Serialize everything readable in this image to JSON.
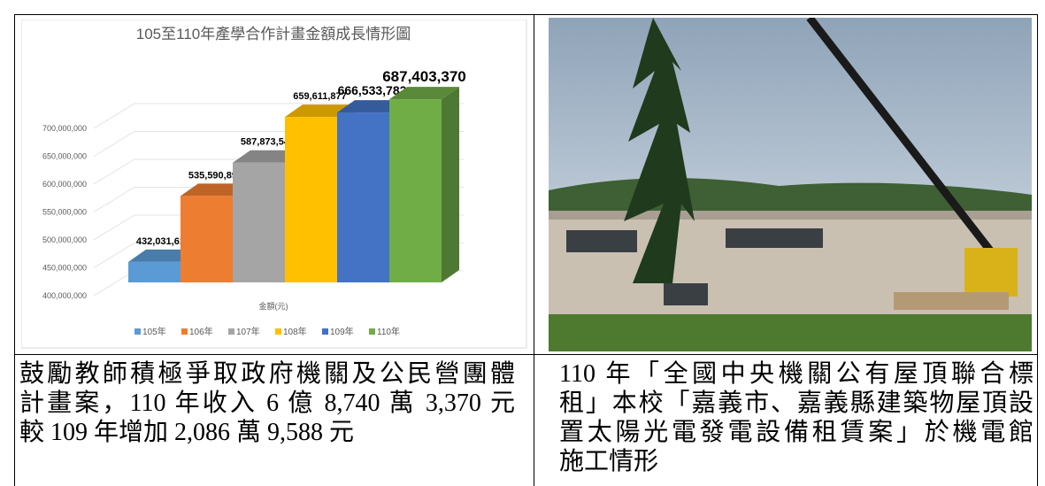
{
  "chart_data": {
    "type": "bar3d",
    "title": "105至110年產學合作計畫金額成長情形圖",
    "x_label": "金額(元)",
    "series": [
      {
        "name": "105年",
        "color": "#5b9bd5",
        "values": [
          432031615
        ],
        "value_labels": [
          "432,031,615"
        ]
      },
      {
        "name": "106年",
        "color": "#ed7d31",
        "values": [
          535590898
        ],
        "value_labels": [
          "535,590,898"
        ]
      },
      {
        "name": "107年",
        "color": "#a5a5a5",
        "values": [
          587873545
        ],
        "value_labels": [
          "587,873,545"
        ]
      },
      {
        "name": "108年",
        "color": "#ffc000",
        "values": [
          659611877
        ],
        "value_labels": [
          "659,611,877"
        ]
      },
      {
        "name": "109年",
        "color": "#4472c4",
        "values": [
          666533782
        ],
        "value_labels": [
          "666,533,782"
        ]
      },
      {
        "name": "110年",
        "color": "#70ad47",
        "values": [
          687403370
        ],
        "value_labels": [
          "687,403,370"
        ]
      }
    ],
    "ylim": [
      400000000,
      700000000
    ],
    "yticks": [
      {
        "value": 400000000,
        "label": "400,000,000"
      },
      {
        "value": 450000000,
        "label": "450,000,000"
      },
      {
        "value": 500000000,
        "label": "500,000,000"
      },
      {
        "value": 550000000,
        "label": "550,000,000"
      },
      {
        "value": 600000000,
        "label": "600,000,000"
      },
      {
        "value": 650000000,
        "label": "650,000,000"
      },
      {
        "value": 700000000,
        "label": "700,000,000"
      }
    ],
    "grid": true,
    "legend": "bottom"
  },
  "captions": {
    "left": [
      "鼓勵教師積極爭取政府機關及公民營團體",
      "計畫案，110 年收入 6 億 8,740 萬 3,370 元",
      "較 109 年增加 2,086 萬 9,588 元"
    ],
    "right": [
      "110 年「全國中央機關公有屋頂聯合標",
      "租」本校「嘉義市、嘉義縣建築物屋頂設",
      "置太陽光電發電設備租賃案」於機電館",
      "施工情形"
    ]
  }
}
